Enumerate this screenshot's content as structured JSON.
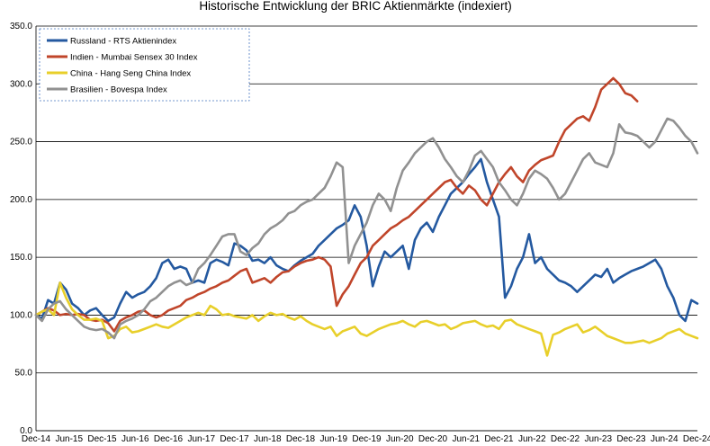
{
  "chart_data": {
    "type": "line",
    "title": "Historische Entwicklung der BRIC Aktienmärkte (indexiert)",
    "xlabel": "",
    "ylabel": "",
    "ylim": [
      0,
      350
    ],
    "yticks": [
      "0.0",
      "50.0",
      "100.0",
      "150.0",
      "200.0",
      "250.0",
      "300.0",
      "350.0"
    ],
    "grid": "horizontal",
    "legend_position": "top-left",
    "x_tick_labels": [
      "Dec-14",
      "Jun-15",
      "Dec-15",
      "Jun-16",
      "Dec-16",
      "Jun-17",
      "Dec-17",
      "Jun-18",
      "Dec-18",
      "Jun-19",
      "Dec-19",
      "Jun-20",
      "Dec-20",
      "Jun-21",
      "Dec-21",
      "Jun-22",
      "Dec-22",
      "Jun-23",
      "Dec-23",
      "Jun-24",
      "Dec-24"
    ],
    "x_start": "Dec-14",
    "series": [
      {
        "name": "Russland - RTS Aktienindex",
        "color": "#2459a0",
        "values": [
          100,
          97,
          113,
          110,
          128,
          122,
          110,
          106,
          100,
          104,
          106,
          100,
          95,
          98,
          110,
          120,
          115,
          118,
          120,
          125,
          132,
          145,
          148,
          140,
          142,
          140,
          128,
          130,
          128,
          145,
          148,
          146,
          143,
          162,
          160,
          156,
          147,
          148,
          145,
          150,
          143,
          140,
          138,
          143,
          147,
          150,
          153,
          160,
          165,
          170,
          175,
          178,
          182,
          195,
          185,
          160,
          125,
          142,
          155,
          150,
          155,
          160,
          140,
          165,
          175,
          180,
          172,
          185,
          195,
          205,
          210,
          215,
          222,
          228,
          235,
          215,
          200,
          185,
          115,
          125,
          140,
          150,
          170,
          145,
          150,
          140,
          135,
          130,
          128,
          125,
          120,
          125,
          130,
          135,
          133,
          140,
          128,
          132,
          135,
          138,
          140,
          142,
          145,
          148,
          140,
          125,
          115,
          100,
          95,
          113,
          110
        ],
        "y_from_pixels": true
      },
      {
        "name": "Indien - Mumbai Sensex 30 Index",
        "color": "#c0452a",
        "values": [
          100,
          103,
          106,
          104,
          100,
          101,
          100,
          101,
          100,
          96,
          95,
          96,
          93,
          86,
          95,
          98,
          100,
          103,
          104,
          100,
          98,
          100,
          104,
          106,
          108,
          113,
          115,
          118,
          120,
          123,
          125,
          128,
          130,
          134,
          138,
          140,
          128,
          130,
          132,
          128,
          133,
          137,
          138,
          142,
          145,
          147,
          148,
          150,
          148,
          142,
          108,
          118,
          125,
          135,
          145,
          150,
          160,
          165,
          170,
          175,
          178,
          182,
          185,
          190,
          195,
          200,
          205,
          210,
          215,
          217,
          210,
          205,
          212,
          208,
          200,
          195,
          205,
          215,
          222,
          228,
          220,
          215,
          225,
          230,
          234,
          236,
          238,
          250,
          260,
          265,
          270,
          272,
          268,
          280,
          295,
          300,
          305,
          300,
          292,
          290,
          285
        ],
        "y_from_pixels": true
      },
      {
        "name": "China - Hang Seng China Index",
        "color": "#e8cf2a",
        "values": [
          100,
          103,
          105,
          100,
          128,
          115,
          105,
          100,
          96,
          96,
          97,
          95,
          80,
          82,
          88,
          90,
          85,
          86,
          88,
          90,
          92,
          90,
          89,
          92,
          95,
          98,
          100,
          102,
          100,
          108,
          105,
          100,
          101,
          99,
          98,
          97,
          100,
          95,
          99,
          102,
          100,
          101,
          98,
          96,
          99,
          95,
          92,
          90,
          88,
          90,
          82,
          86,
          88,
          90,
          84,
          82,
          85,
          88,
          90,
          92,
          93,
          95,
          92,
          90,
          94,
          95,
          93,
          91,
          92,
          88,
          90,
          93,
          94,
          95,
          92,
          90,
          91,
          88,
          95,
          96,
          92,
          90,
          88,
          86,
          84,
          65,
          83,
          85,
          88,
          90,
          92,
          85,
          87,
          90,
          86,
          82,
          80,
          78,
          76,
          76,
          77,
          78,
          76,
          78,
          80,
          84,
          86,
          88,
          84,
          82,
          80
        ],
        "y_from_pixels": true
      },
      {
        "name": "Brasilien - Bovespa Index",
        "color": "#919191",
        "values": [
          100,
          95,
          105,
          110,
          112,
          105,
          100,
          95,
          90,
          88,
          87,
          88,
          85,
          80,
          92,
          95,
          97,
          100,
          105,
          112,
          115,
          120,
          125,
          128,
          130,
          126,
          128,
          140,
          145,
          152,
          160,
          168,
          170,
          170,
          155,
          152,
          158,
          162,
          170,
          175,
          178,
          182,
          188,
          190,
          195,
          198,
          200,
          205,
          210,
          220,
          232,
          228,
          145,
          160,
          170,
          180,
          195,
          205,
          200,
          190,
          210,
          225,
          232,
          240,
          245,
          250,
          253,
          245,
          235,
          228,
          220,
          215,
          225,
          238,
          242,
          235,
          228,
          215,
          208,
          200,
          195,
          205,
          218,
          225,
          222,
          218,
          210,
          200,
          205,
          215,
          225,
          235,
          240,
          232,
          230,
          228,
          240,
          265,
          258,
          257,
          255,
          250,
          245,
          250,
          260,
          270,
          268,
          262,
          255,
          250,
          240
        ],
        "y_from_pixels": true
      }
    ]
  }
}
